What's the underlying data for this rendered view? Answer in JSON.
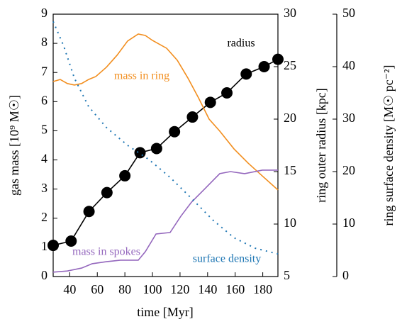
{
  "chart_data": {
    "type": "line",
    "xlabel": "time [Myr]",
    "ylabel": "gas mass [10⁹ M☉]",
    "y2label": "ring outer radius [kpc]",
    "y3label": "ring surface density [M☉ pc⁻²]",
    "xlim": [
      28,
      191
    ],
    "xticks": [
      40,
      60,
      80,
      100,
      120,
      140,
      160,
      180
    ],
    "ylim": [
      0,
      9
    ],
    "yticks": [
      0,
      1,
      2,
      3,
      4,
      5,
      6,
      7,
      8,
      9
    ],
    "y2lim": [
      5,
      30
    ],
    "y2ticks": [
      5,
      10,
      15,
      20,
      25,
      30
    ],
    "y3lim": [
      0,
      50
    ],
    "y3ticks": [
      0,
      10,
      20,
      30,
      40,
      50
    ],
    "series": [
      {
        "name": "radius",
        "color": "#000000",
        "axis": "y2",
        "marker": true,
        "x": [
          28,
          41,
          54,
          67,
          80,
          91,
          103,
          116,
          129,
          142,
          154,
          168,
          181,
          191
        ],
        "values": [
          7.97,
          8.38,
          11.2,
          13.0,
          14.6,
          16.8,
          17.2,
          18.8,
          20.2,
          21.6,
          22.5,
          24.3,
          25.0,
          25.7
        ]
      },
      {
        "name": "mass in ring",
        "color": "#f28e1e",
        "axis": "y",
        "x": [
          28,
          33.1,
          38.3,
          43.4,
          48.6,
          53.7,
          58.9,
          66.6,
          74.3,
          82,
          89.7,
          94.8,
          100,
          110.3,
          118,
          125.7,
          133.4,
          141.1,
          148.8,
          159.1,
          169.4,
          179.7,
          191
        ],
        "values": [
          6.69,
          6.76,
          6.62,
          6.57,
          6.62,
          6.76,
          6.86,
          7.18,
          7.59,
          8.08,
          8.32,
          8.27,
          8.1,
          7.83,
          7.42,
          6.81,
          6.13,
          5.4,
          4.99,
          4.38,
          3.89,
          3.45,
          2.97
        ]
      },
      {
        "name": "mass in spokes",
        "color": "#9467bd",
        "axis": "y",
        "x": [
          28,
          38.3,
          48.6,
          56.3,
          66.6,
          76.8,
          89.7,
          94.8,
          102.6,
          112.8,
          120.6,
          128.3,
          138.6,
          148.8,
          156.6,
          166.8,
          179.7,
          191
        ],
        "values": [
          0.15,
          0.19,
          0.29,
          0.44,
          0.51,
          0.56,
          0.56,
          0.85,
          1.46,
          1.51,
          2.07,
          2.55,
          3.04,
          3.53,
          3.6,
          3.53,
          3.65,
          3.65
        ]
      },
      {
        "name": "surface density",
        "color": "#1f77b4",
        "axis": "y3",
        "dash": true,
        "x": [
          28,
          35.7,
          43.4,
          53.7,
          66.6,
          82,
          97.4,
          112.8,
          128.3,
          143.7,
          159.1,
          174.5,
          191
        ],
        "values": [
          48.6,
          43.9,
          37.8,
          32.4,
          28.4,
          25.0,
          22.3,
          18.9,
          14.9,
          10.8,
          7.4,
          5.4,
          4.3
        ]
      }
    ]
  }
}
